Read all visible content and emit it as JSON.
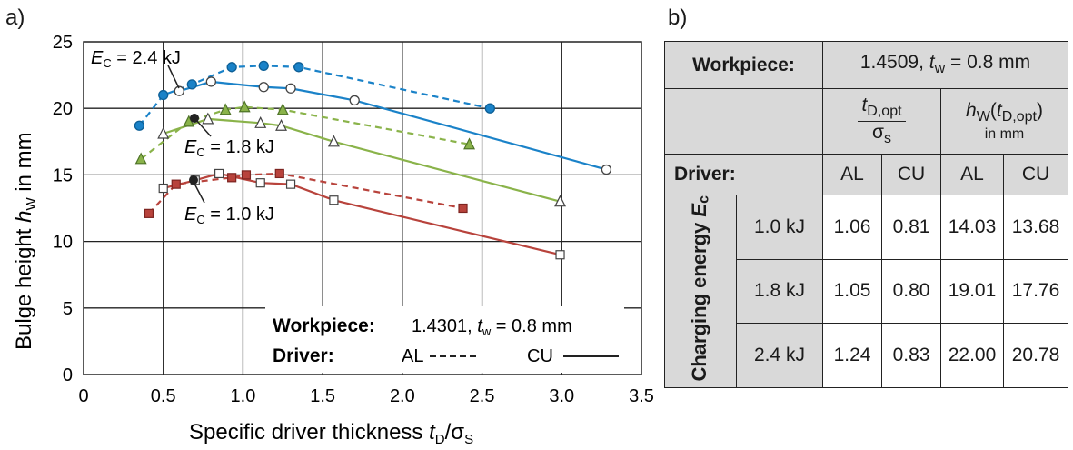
{
  "panel_a_label": "a)",
  "panel_b_label": "b)",
  "chart_data": {
    "type": "line",
    "xlabel_main": "Specific driver thickness ",
    "xlabel_sym": "t",
    "xlabel_sub": "D",
    "xlabel_tail": "/σ",
    "xlabel_tail_sub": "S",
    "ylabel_main": "Bulge height ",
    "ylabel_sym": "h",
    "ylabel_sub": "W",
    "ylabel_tail": " in mm",
    "xlim": [
      0,
      3.5
    ],
    "ylim": [
      0,
      25
    ],
    "xticks": [
      "0",
      "0.5",
      "1.0",
      "1.5",
      "2.0",
      "2.5",
      "3.0",
      "3.5"
    ],
    "yticks": [
      "0",
      "5",
      "10",
      "15",
      "20",
      "25"
    ],
    "grid": true,
    "annotations": [
      {
        "sym": "E",
        "sub": "C",
        "text": " = 2.4 kJ"
      },
      {
        "sym": "E",
        "sub": "C",
        "text": " = 1.8 kJ"
      },
      {
        "sym": "E",
        "sub": "C",
        "text": " = 1.0 kJ"
      }
    ],
    "legend_box": {
      "workpiece_label": "Workpiece:",
      "workpiece_value": "1.4301, ",
      "tw_sym": "t",
      "tw_sub": "w",
      "tw_value": " = 0.8 mm",
      "driver_label": "Driver:",
      "al_label": "AL",
      "cu_label": "CU"
    },
    "colors": {
      "blue": "#1a82c8",
      "green": "#8ab34a",
      "red": "#b8433c"
    },
    "series": [
      {
        "driver": "AL",
        "energy": "2.4 kJ",
        "color": "blue",
        "dashed": true,
        "x": [
          0.35,
          0.5,
          0.68,
          0.93,
          1.13,
          1.35,
          2.55
        ],
        "y": [
          18.7,
          21.0,
          21.8,
          23.1,
          23.2,
          23.1,
          20.0
        ]
      },
      {
        "driver": "CU",
        "energy": "2.4 kJ",
        "color": "blue",
        "dashed": false,
        "x": [
          0.6,
          0.8,
          1.13,
          1.3,
          1.7,
          3.28
        ],
        "y": [
          21.3,
          22.0,
          21.6,
          21.5,
          20.6,
          15.4
        ]
      },
      {
        "driver": "AL",
        "energy": "1.8 kJ",
        "color": "green",
        "dashed": true,
        "x": [
          0.36,
          0.66,
          0.89,
          1.01,
          1.25,
          2.42
        ],
        "y": [
          16.2,
          19.0,
          19.9,
          20.1,
          19.9,
          17.3
        ]
      },
      {
        "driver": "CU",
        "energy": "1.8 kJ",
        "color": "green",
        "dashed": false,
        "x": [
          0.5,
          0.78,
          1.11,
          1.24,
          1.57,
          2.99
        ],
        "y": [
          18.1,
          19.2,
          18.9,
          18.7,
          17.5,
          13.0
        ]
      },
      {
        "driver": "AL",
        "energy": "1.0 kJ",
        "color": "red",
        "dashed": true,
        "x": [
          0.41,
          0.58,
          0.93,
          1.02,
          1.23,
          2.38
        ],
        "y": [
          12.1,
          14.3,
          14.8,
          15.0,
          15.1,
          12.5
        ]
      },
      {
        "driver": "CU",
        "energy": "1.0 kJ",
        "color": "red",
        "dashed": false,
        "x": [
          0.5,
          0.7,
          0.85,
          1.11,
          1.3,
          1.57,
          2.99
        ],
        "y": [
          14.0,
          14.6,
          15.1,
          14.4,
          14.3,
          13.1,
          9.0
        ]
      }
    ]
  },
  "table": {
    "workpiece_label": "Workpiece:",
    "workpiece_value": "1.4509, ",
    "tw_sym": "t",
    "tw_sub": "w",
    "tw_value": " = 0.8 mm",
    "col1_num_sym": "t",
    "col1_num_sub": "D,opt",
    "col1_den": "σ",
    "col1_den_sub": "s",
    "col2_sym": "h",
    "col2_sub": "W",
    "col2_paren_sym": "t",
    "col2_paren_sub": "D,opt",
    "col2_unit": "in mm",
    "driver_label": "Driver:",
    "driver_cols": [
      "AL",
      "CU",
      "AL",
      "CU"
    ],
    "energy_label": "Charging energy ",
    "energy_sym": "E",
    "energy_sub": "c",
    "rows": [
      {
        "energy": "1.0 kJ",
        "values": [
          "1.06",
          "0.81",
          "14.03",
          "13.68"
        ]
      },
      {
        "energy": "1.8 kJ",
        "values": [
          "1.05",
          "0.80",
          "19.01",
          "17.76"
        ]
      },
      {
        "energy": "2.4 kJ",
        "values": [
          "1.24",
          "0.83",
          "22.00",
          "20.78"
        ]
      }
    ]
  }
}
